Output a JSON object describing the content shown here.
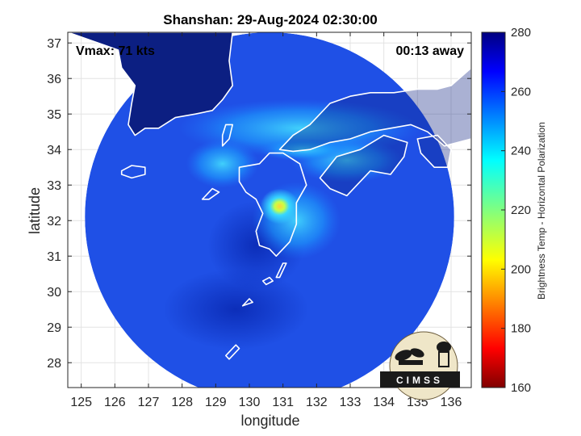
{
  "chart_data": {
    "type": "heatmap",
    "title": "Shanshan: 29-Aug-2024 02:30:00",
    "xlabel": "longitude",
    "ylabel": "latitude",
    "xlim": [
      124.6,
      136.6
    ],
    "ylim": [
      27.3,
      37.3
    ],
    "xticks": [
      "125",
      "126",
      "127",
      "128",
      "129",
      "130",
      "131",
      "132",
      "133",
      "134",
      "135",
      "136"
    ],
    "yticks": [
      "28",
      "29",
      "30",
      "31",
      "32",
      "33",
      "34",
      "35",
      "36",
      "37"
    ],
    "grid": true,
    "swath": {
      "center_lon": 130.6,
      "center_lat": 32.1,
      "radius_deg_lat": 5.2
    },
    "storm_center": {
      "lon": 130.9,
      "lat": 32.4
    },
    "vmax_label": "Vmax: 71 kts",
    "time_away_label": "00:13 away",
    "colorbar": {
      "label": "Brightness Temp - Horizontal Polarization",
      "min": 160,
      "max": 280,
      "ticks": [
        "160",
        "180",
        "200",
        "220",
        "240",
        "260",
        "280"
      ],
      "colormap": "jet"
    },
    "logo_text": "CIMSS"
  },
  "colors": {
    "ocean": "#1f50e6",
    "land": "#0c1f82",
    "coast": "#ffffff"
  }
}
